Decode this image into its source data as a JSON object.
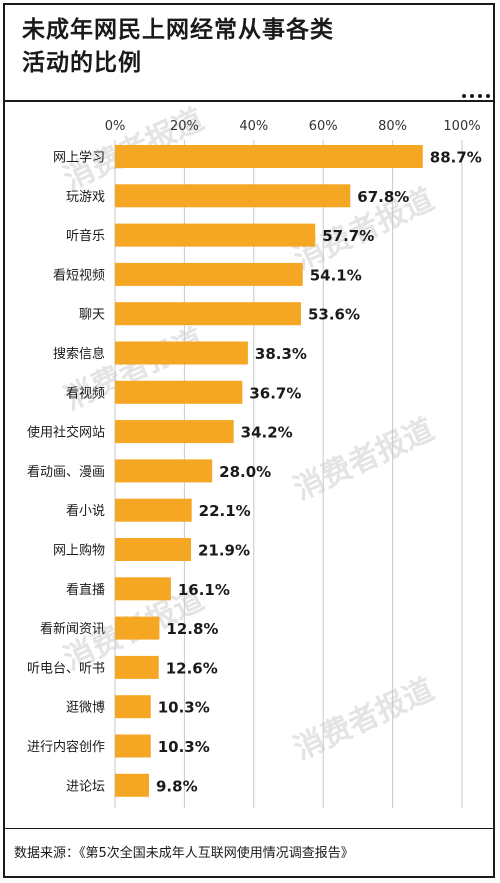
{
  "header": {
    "title_line1": "未成年网民上网经常从事各类",
    "title_line2": "活动的比例"
  },
  "watermark": "消费者报道",
  "footer": {
    "source": "数据来源：《第5次全国未成年人互联网使用情况调查报告》"
  },
  "colors": {
    "bar": "#f5a623",
    "grid": "#c8c8c8",
    "text": "#1a1a1a"
  },
  "chart_data": {
    "type": "bar",
    "orientation": "horizontal",
    "title": "未成年网民上网经常从事各类活动的比例",
    "xlim": [
      0,
      100
    ],
    "grid": true,
    "tick_labels": [
      "0%",
      "20%",
      "40%",
      "60%",
      "80%",
      "100%"
    ],
    "tick_values": [
      0,
      20,
      40,
      60,
      80,
      100
    ],
    "categories": [
      "网上学习",
      "玩游戏",
      "听音乐",
      "看短视频",
      "聊天",
      "搜索信息",
      "看视频",
      "使用社交网站",
      "看动画、漫画",
      "看小说",
      "网上购物",
      "看直播",
      "看新闻资讯",
      "听电台、听书",
      "逛微博",
      "进行内容创作",
      "进论坛"
    ],
    "values": [
      88.7,
      67.8,
      57.7,
      54.1,
      53.6,
      38.3,
      36.7,
      34.2,
      28.0,
      22.1,
      21.9,
      16.1,
      12.8,
      12.6,
      10.3,
      10.3,
      9.8
    ],
    "value_labels": [
      "88.7%",
      "67.8%",
      "57.7%",
      "54.1%",
      "53.6%",
      "38.3%",
      "36.7%",
      "34.2%",
      "28.0%",
      "22.1%",
      "21.9%",
      "16.1%",
      "12.8%",
      "12.6%",
      "10.3%",
      "10.3%",
      "9.8%"
    ]
  }
}
